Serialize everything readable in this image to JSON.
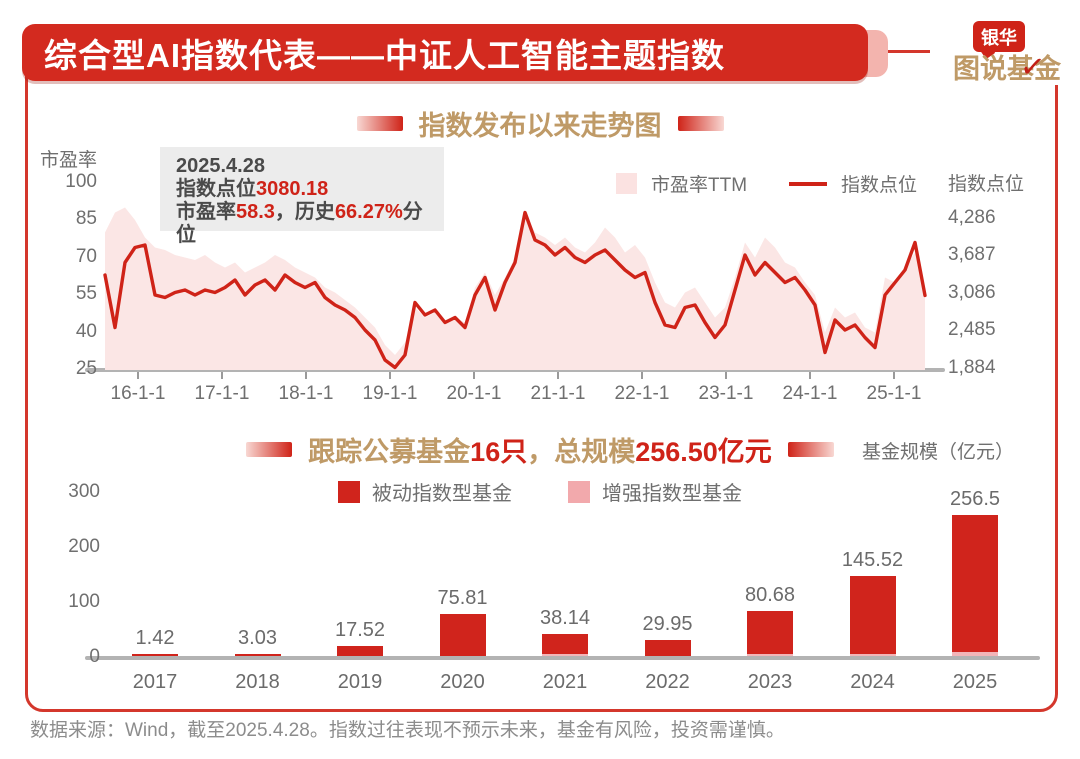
{
  "page": {
    "title": "综合型AI指数代表——中证人工智能主题指数",
    "footer": "数据来源：Wind，截至2025.4.28。指数过往表现不预示未来，基金有风险，投资需谨慎。"
  },
  "logo": {
    "top": "银华",
    "bottom": "图说基金",
    "check_icon": "✓"
  },
  "colors": {
    "primary_red": "#cf2318",
    "banner_red": "#d32a1f",
    "pe_area_pink": "#fbe6e5",
    "enhanced_bar_pink": "#f2b5b8",
    "tan_gold": "#bf9a67",
    "text_gray": "#6f6f6f",
    "axis_gray": "#b3b3b3",
    "annotation_bg": "#ececec",
    "footer_gray": "#8c8c8c"
  },
  "trend_section": {
    "title": "指数发布以来走势图",
    "left_axis_label": "市盈率",
    "right_axis_label": "指数点位",
    "annotation": {
      "date": "2025.4.28",
      "line2": [
        {
          "t": "指数点位",
          "c": "dark"
        },
        {
          "t": "3080.18",
          "c": "red"
        }
      ],
      "line3": [
        {
          "t": "市盈率",
          "c": "dark"
        },
        {
          "t": "58.3",
          "c": "red"
        },
        {
          "t": "，历史",
          "c": "dark"
        },
        {
          "t": "66.27%",
          "c": "red"
        },
        {
          "t": "分位",
          "c": "dark"
        }
      ]
    },
    "legend": [
      {
        "label": "市盈率TTM"
      },
      {
        "label": "指数点位"
      }
    ]
  },
  "funds_section": {
    "title_parts": [
      {
        "t": "跟踪公募基金",
        "c": "tan"
      },
      {
        "t": "16只",
        "c": "red"
      },
      {
        "t": "，总规模",
        "c": "tan"
      },
      {
        "t": "256.50亿元",
        "c": "red"
      }
    ],
    "unit_label": "基金规模（亿元）",
    "legend": [
      {
        "label": "被动指数型基金"
      },
      {
        "label": "增强指数型基金"
      }
    ]
  },
  "chart_data": [
    {
      "type": "line",
      "title": "指数发布以来走势图",
      "x_tick_labels": [
        "16-1-1",
        "17-1-1",
        "18-1-1",
        "19-1-1",
        "20-1-1",
        "21-1-1",
        "22-1-1",
        "23-1-1",
        "24-1-1",
        "25-1-1"
      ],
      "left_axis": {
        "label": "市盈率",
        "ticks": [
          100,
          85,
          70,
          55,
          40,
          25
        ],
        "range": [
          25,
          100
        ]
      },
      "right_axis": {
        "label": "指数点位",
        "ticks": [
          "4,286",
          "3,687",
          "3,086",
          "2,485",
          "1,884"
        ],
        "tick_values": [
          4286,
          3687,
          3086,
          2485,
          1884
        ],
        "range": [
          1884,
          4889
        ]
      },
      "series": [
        {
          "name": "市盈率TTM",
          "draw": "area",
          "axis": "left",
          "values": [
            80,
            88,
            90,
            85,
            78,
            74,
            73,
            71,
            70,
            69,
            71,
            68,
            66,
            68,
            64,
            66,
            68,
            71,
            69,
            66,
            64,
            62,
            58,
            56,
            53,
            50,
            46,
            42,
            35,
            31,
            36,
            50,
            46,
            48,
            45,
            46,
            44,
            58,
            64,
            55,
            62,
            70,
            88,
            80,
            78,
            75,
            78,
            74,
            72,
            76,
            82,
            78,
            72,
            75,
            70,
            60,
            52,
            50,
            56,
            58,
            52,
            46,
            50,
            62,
            76,
            70,
            78,
            74,
            68,
            66,
            60,
            55,
            40,
            50,
            46,
            48,
            42,
            40,
            62,
            60,
            66,
            72,
            58.3
          ]
        },
        {
          "name": "指数点位",
          "draw": "line",
          "axis": "right",
          "values": [
            3407,
            2565,
            3607,
            3847,
            3887,
            3086,
            3046,
            3126,
            3166,
            3086,
            3166,
            3126,
            3206,
            3326,
            3086,
            3246,
            3326,
            3166,
            3407,
            3286,
            3206,
            3286,
            3046,
            2926,
            2846,
            2725,
            2525,
            2365,
            2044,
            1924,
            2124,
            2966,
            2765,
            2846,
            2645,
            2725,
            2565,
            3086,
            3366,
            2846,
            3286,
            3607,
            4408,
            3967,
            3887,
            3727,
            3847,
            3687,
            3607,
            3727,
            3807,
            3647,
            3487,
            3366,
            3447,
            2966,
            2605,
            2565,
            2886,
            2926,
            2645,
            2405,
            2605,
            3166,
            3727,
            3407,
            3607,
            3447,
            3286,
            3366,
            3166,
            2926,
            2164,
            2685,
            2525,
            2605,
            2405,
            2245,
            3086,
            3286,
            3487,
            3927,
            3080
          ]
        }
      ],
      "latest": {
        "date": "2025.4.28",
        "index": 3080.18,
        "pe": 58.3,
        "pe_percentile": "66.27%"
      }
    },
    {
      "type": "bar",
      "categories": [
        "2017",
        "2018",
        "2019",
        "2020",
        "2021",
        "2022",
        "2023",
        "2024",
        "2025"
      ],
      "series": [
        {
          "name": "被动指数型基金",
          "values": [
            1.42,
            3.03,
            17.52,
            75.81,
            36.14,
            29.95,
            78.18,
            142.02,
            248.5
          ]
        },
        {
          "name": "增强指数型基金",
          "values": [
            0,
            0,
            0,
            0,
            2.0,
            0,
            2.5,
            3.5,
            8.0
          ]
        }
      ],
      "total_labels": [
        "1.42",
        "3.03",
        "17.52",
        "75.81",
        "38.14",
        "29.95",
        "80.68",
        "145.52",
        "256.5"
      ],
      "totals": [
        1.42,
        3.03,
        17.52,
        75.81,
        38.14,
        29.95,
        80.68,
        145.52,
        256.5
      ],
      "title": "跟踪公募基金16只，总规模256.50亿元",
      "ylabel": "基金规模（亿元）",
      "yticks": [
        300,
        200,
        100,
        0
      ],
      "ylim": [
        0,
        300
      ],
      "legend_position": "top"
    }
  ]
}
